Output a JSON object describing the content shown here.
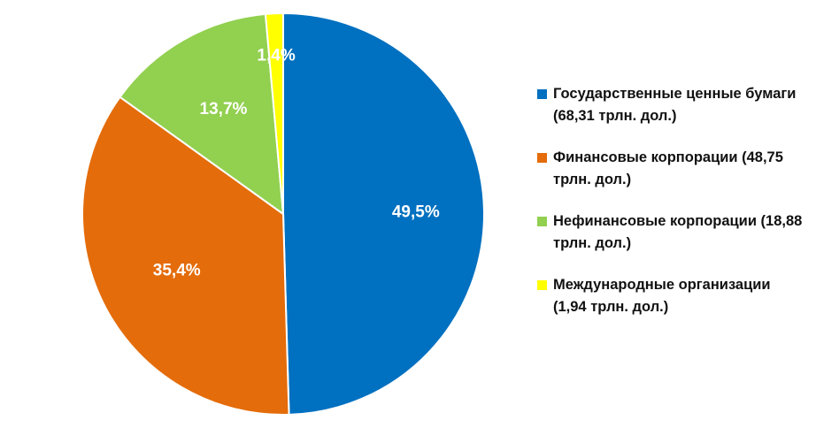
{
  "chart_data": {
    "type": "pie",
    "title": "",
    "start_angle_deg": 0,
    "direction": "clockwise",
    "slices": [
      {
        "label": "Государственные ценные бумаги (68,31 трлн. дол.)",
        "value": 68.31,
        "percent_label": "49,5%",
        "color": "#0070c0"
      },
      {
        "label": "Финансовые корпорации (48,75 трлн. дол.)",
        "value": 48.75,
        "percent_label": "35,4%",
        "color": "#e46c0a"
      },
      {
        "label": "Нефинансовые корпорации (18,88 трлн. дол.)",
        "value": 18.88,
        "percent_label": "13,7%",
        "color": "#92d050"
      },
      {
        "label": "Международные организации (1,94 трлн. дол.)",
        "value": 1.94,
        "percent_label": "1,4%",
        "color": "#ffff00"
      }
    ],
    "legend_position": "right"
  }
}
